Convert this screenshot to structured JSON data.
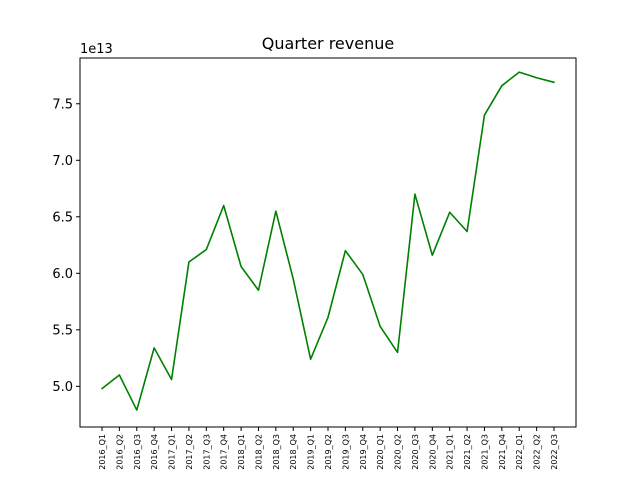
{
  "chart_data": {
    "type": "line",
    "title": "Quarter revenue",
    "xlabel": "",
    "ylabel": "",
    "y_offset_label": "1e13",
    "categories": [
      "2016_Q1",
      "2016_Q2",
      "2016_Q3",
      "2016_Q4",
      "2017_Q1",
      "2017_Q2",
      "2017_Q3",
      "2017_Q4",
      "2018_Q1",
      "2018_Q2",
      "2018_Q3",
      "2018_Q4",
      "2019_Q1",
      "2019_Q2",
      "2019_Q3",
      "2019_Q4",
      "2020_Q1",
      "2020_Q2",
      "2020_Q3",
      "2020_Q4",
      "2021_Q1",
      "2021_Q2",
      "2021_Q3",
      "2021_Q4",
      "2022_Q1",
      "2022_Q2",
      "2022_Q3"
    ],
    "series": [
      {
        "color": "#008000",
        "values": [
          4.98,
          5.1,
          4.79,
          5.34,
          5.06,
          6.1,
          6.21,
          6.6,
          6.06,
          5.85,
          6.55,
          5.95,
          5.24,
          5.61,
          6.2,
          5.99,
          5.53,
          5.3,
          6.7,
          6.16,
          6.54,
          6.37,
          7.4,
          7.66,
          7.78,
          7.73,
          7.69
        ]
      }
    ],
    "y_ticks": [
      5.0,
      5.5,
      6.0,
      6.5,
      7.0,
      7.5
    ],
    "y_tick_labels": [
      "5.0",
      "5.5",
      "6.0",
      "6.5",
      "7.0",
      "7.5"
    ],
    "ylim": [
      4.64,
      7.905
    ],
    "grid": false,
    "legend": "none"
  }
}
